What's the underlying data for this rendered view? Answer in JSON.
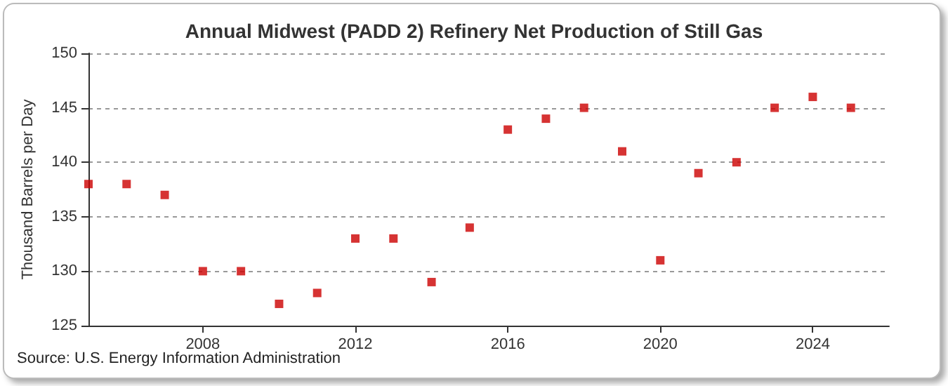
{
  "chart_data": {
    "type": "scatter",
    "title": "Annual Midwest (PADD 2) Refinery Net Production of Still Gas",
    "ylabel": "Thousand Barrels per Day",
    "x": [
      2005,
      2006,
      2007,
      2008,
      2009,
      2010,
      2011,
      2012,
      2013,
      2014,
      2015,
      2016,
      2017,
      2018,
      2019,
      2020,
      2021,
      2022,
      2023,
      2024,
      2025
    ],
    "series": [
      {
        "color": "#cc0000",
        "values": [
          138,
          138,
          137,
          130,
          130,
          127,
          128,
          133,
          133,
          129,
          134,
          143,
          144,
          145,
          141,
          131,
          139,
          140,
          145,
          146,
          145
        ]
      }
    ],
    "xlim": [
      2005,
      2026
    ],
    "xticks": [
      2008,
      2012,
      2016,
      2020,
      2024
    ],
    "ylim": [
      125,
      150
    ],
    "yticks": [
      125,
      130,
      135,
      140,
      145,
      150
    ],
    "grid": "y",
    "marker": "square",
    "annotations": [
      "Source: U.S. Energy Information Administration"
    ]
  }
}
